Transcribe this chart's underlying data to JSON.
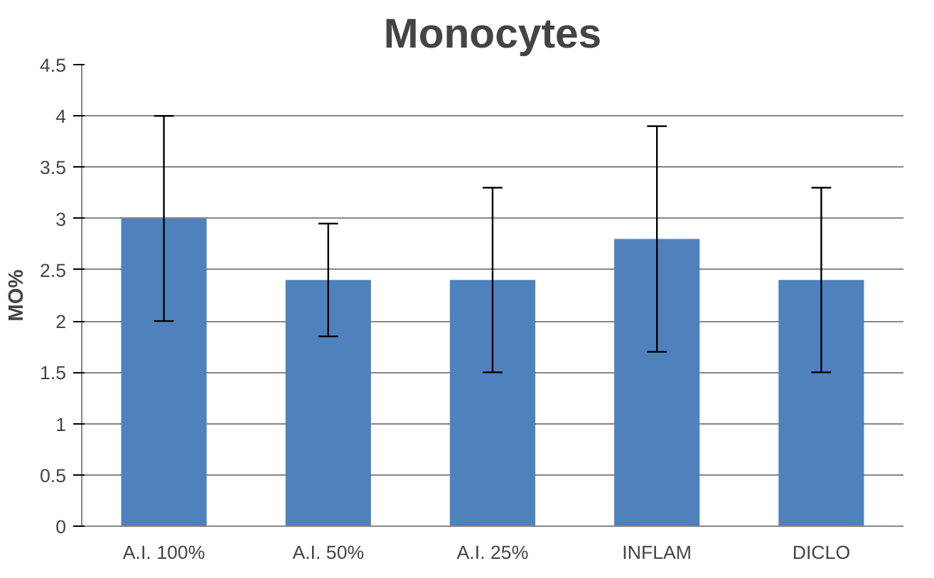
{
  "chart_data": {
    "type": "bar",
    "title": "Monocytes",
    "ylabel": "MO%",
    "categories": [
      "A.I. 100%",
      "A.I. 50%",
      "A.I. 25%",
      "INFLAM",
      "DICLO"
    ],
    "values": [
      3.0,
      2.4,
      2.4,
      2.8,
      2.4
    ],
    "errors": [
      1.0,
      0.55,
      0.9,
      1.1,
      0.9
    ],
    "color": "#4f81bd",
    "ylim": [
      0,
      4.5
    ],
    "yticks": [
      0,
      0.5,
      1,
      1.5,
      2,
      2.5,
      3,
      3.5,
      4,
      4.5
    ],
    "grid": "y"
  }
}
